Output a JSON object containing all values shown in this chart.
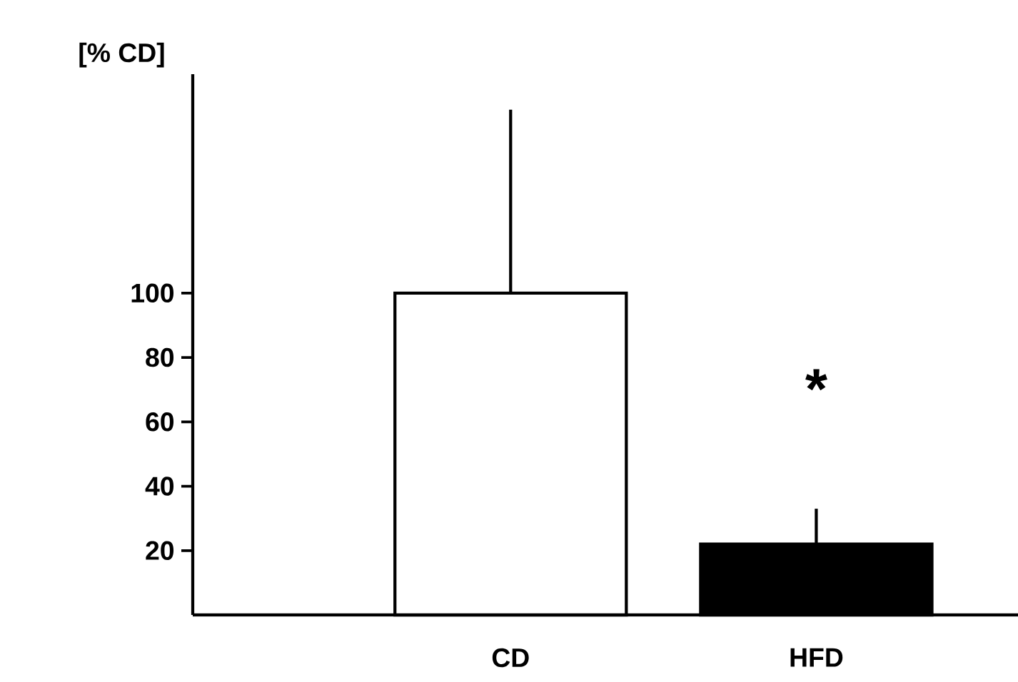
{
  "chart_data": {
    "type": "bar",
    "ylabel": "[% CD]",
    "categories": [
      "CD",
      "HFD"
    ],
    "values": [
      100,
      22
    ],
    "colors": [
      "#ffffff",
      "#000000"
    ],
    "errors": [
      [
        100,
        157
      ],
      [
        22,
        33
      ]
    ],
    "ylim": [
      0,
      168
    ],
    "yticks": [
      20,
      40,
      60,
      80,
      100
    ],
    "annotations": [
      "*"
    ]
  }
}
